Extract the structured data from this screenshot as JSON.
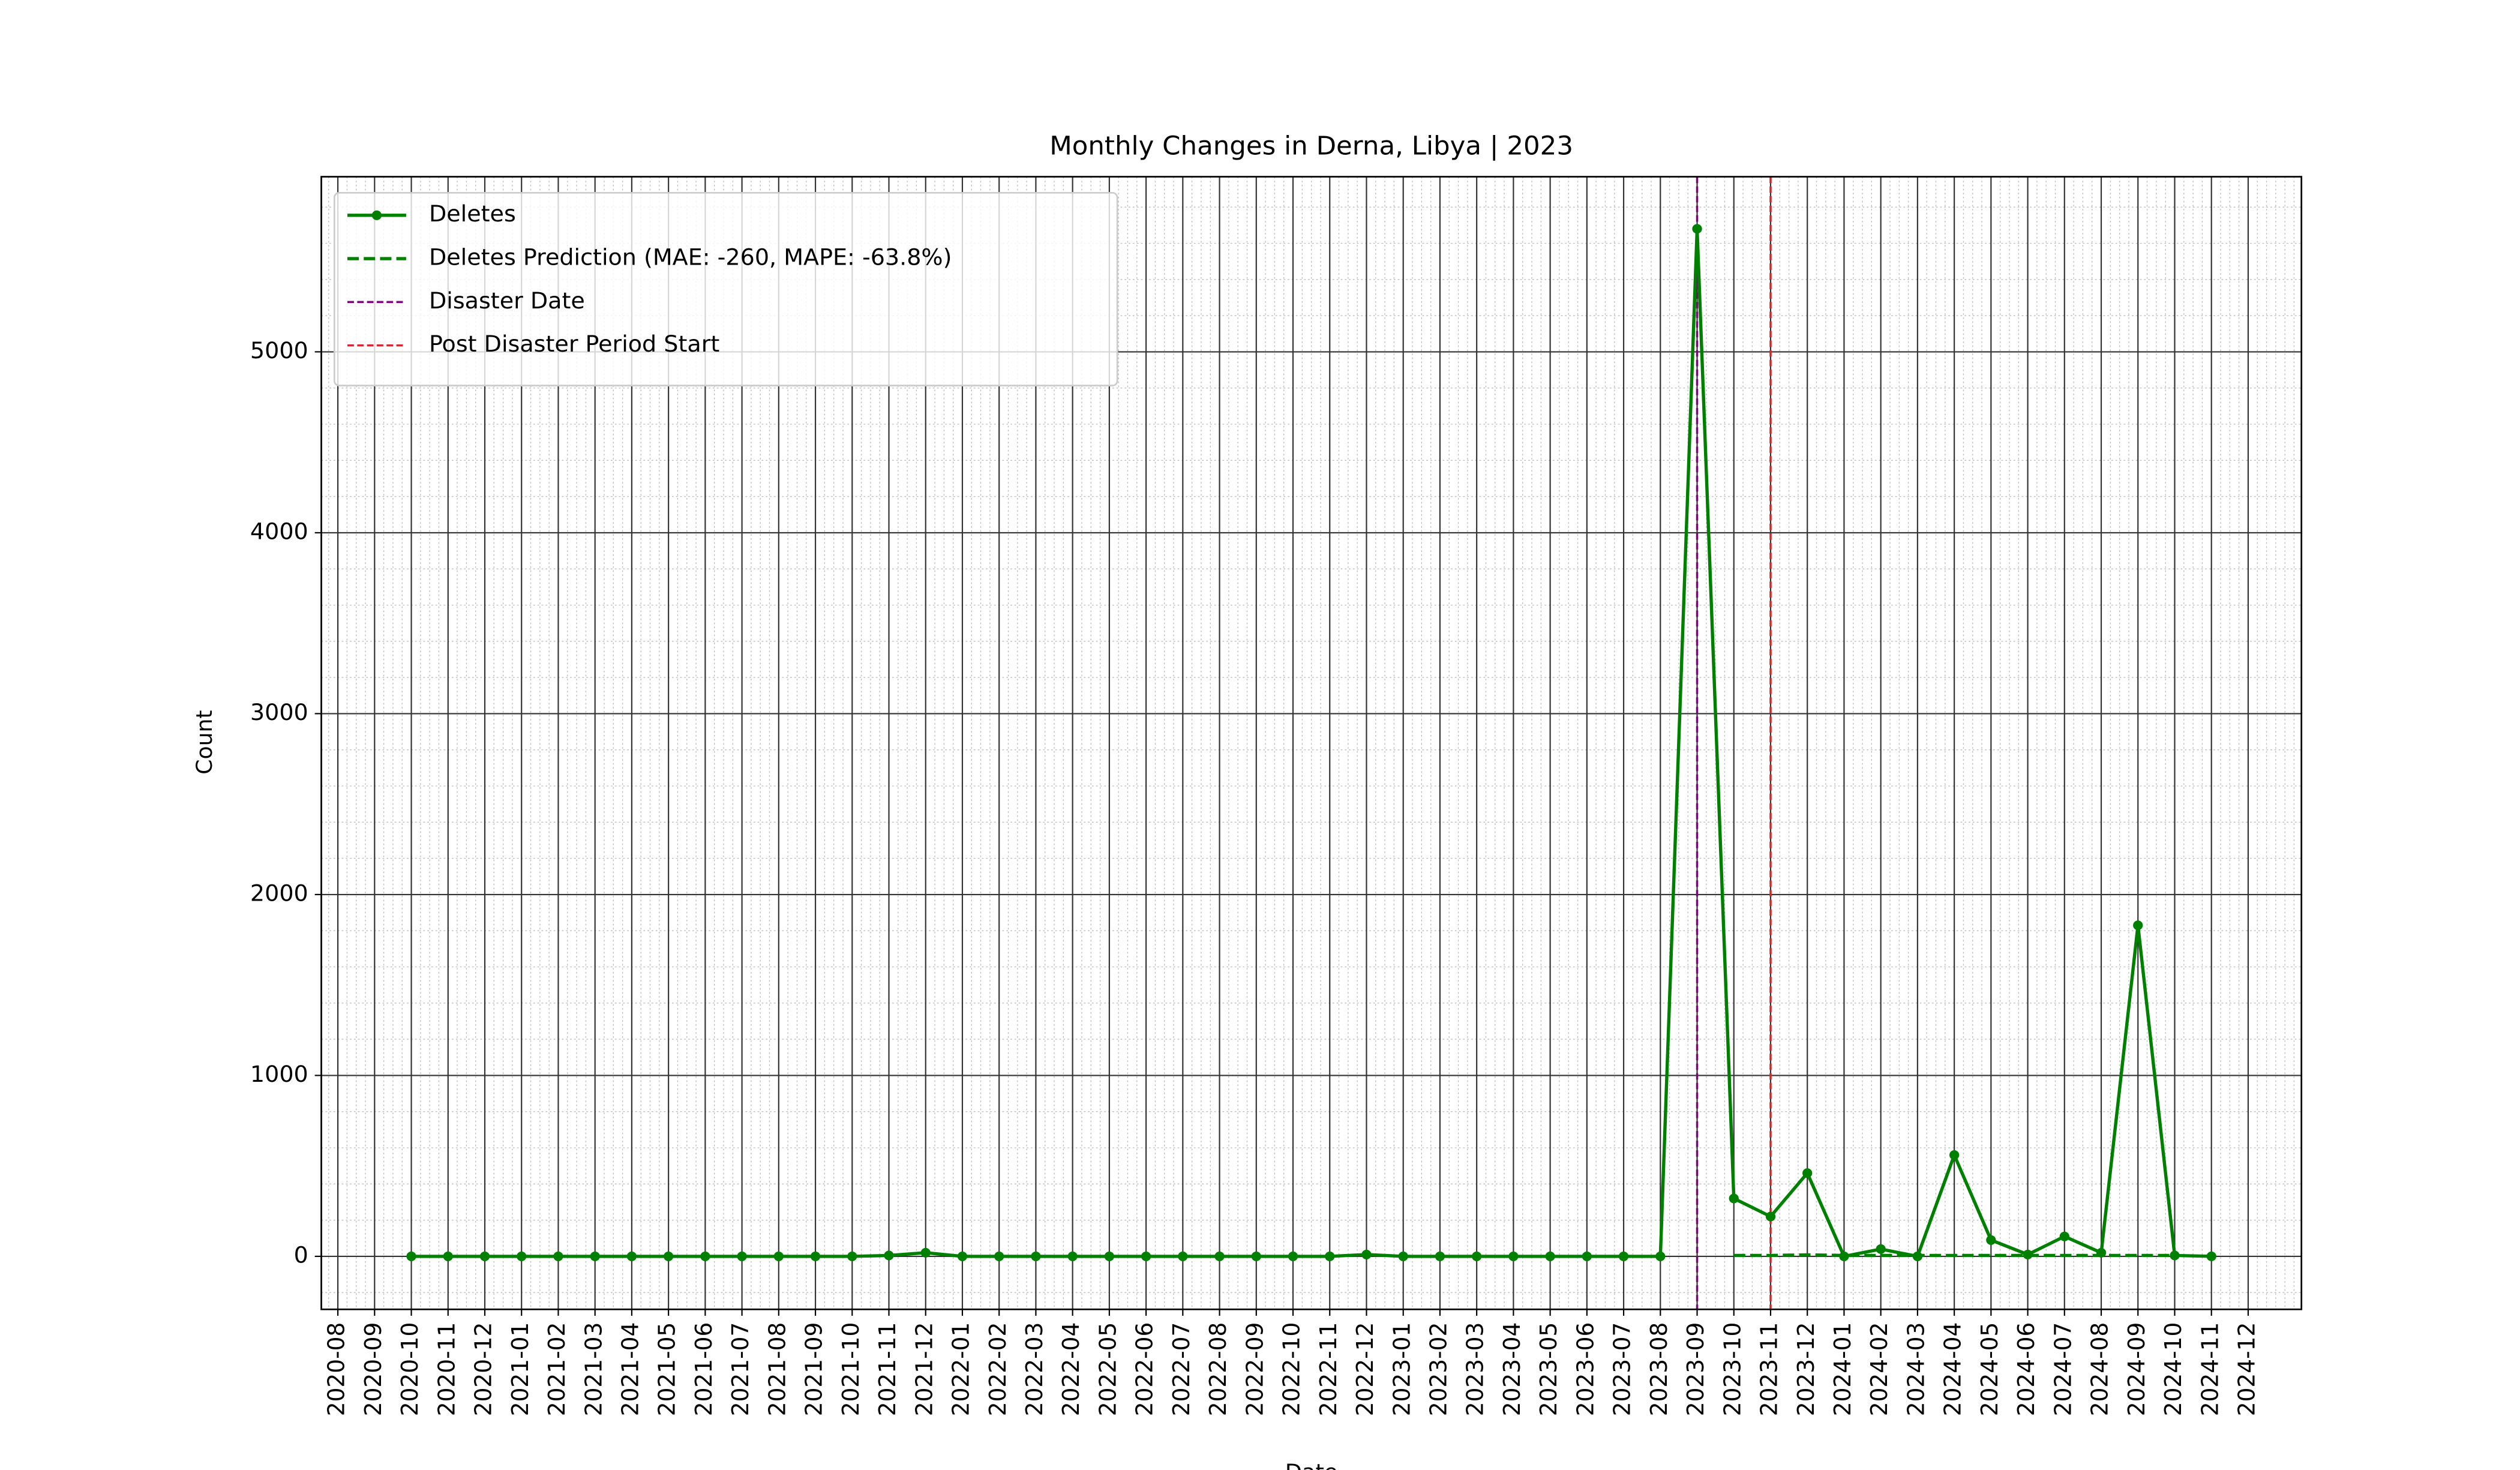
{
  "chart_data": {
    "type": "line",
    "title": "Monthly Changes in Derna, Libya | 2023",
    "x_label": "Date",
    "y_label": "Count",
    "x": [
      "2020-10",
      "2020-11",
      "2020-12",
      "2021-01",
      "2021-02",
      "2021-03",
      "2021-04",
      "2021-05",
      "2021-06",
      "2021-07",
      "2021-08",
      "2021-09",
      "2021-10",
      "2021-11",
      "2021-12",
      "2022-01",
      "2022-02",
      "2022-03",
      "2022-04",
      "2022-05",
      "2022-06",
      "2022-07",
      "2022-08",
      "2022-09",
      "2022-10",
      "2022-11",
      "2022-12",
      "2023-01",
      "2023-02",
      "2023-03",
      "2023-04",
      "2023-05",
      "2023-06",
      "2023-07",
      "2023-08",
      "2023-09",
      "2023-10",
      "2023-11",
      "2023-12",
      "2024-01",
      "2024-02",
      "2024-03",
      "2024-04",
      "2024-05",
      "2024-06",
      "2024-07",
      "2024-08",
      "2024-09",
      "2024-10",
      "2024-11"
    ],
    "series": [
      {
        "name": "Deletes",
        "color": "#008000",
        "style": "solid",
        "markers": true,
        "values": [
          0,
          0,
          0,
          0,
          0,
          0,
          0,
          0,
          0,
          0,
          0,
          0,
          0,
          5,
          20,
          0,
          0,
          0,
          0,
          0,
          0,
          0,
          0,
          0,
          0,
          0,
          10,
          0,
          0,
          0,
          0,
          0,
          0,
          0,
          0,
          5680,
          320,
          220,
          460,
          0,
          40,
          0,
          560,
          90,
          10,
          110,
          20,
          1830,
          5,
          0
        ]
      },
      {
        "name": "Deletes Prediction (MAE: -260, MAPE: -63.8%)",
        "color": "#008000",
        "style": "dashed",
        "markers": false,
        "values": [
          null,
          null,
          null,
          null,
          null,
          null,
          null,
          null,
          null,
          null,
          null,
          null,
          null,
          null,
          null,
          null,
          null,
          null,
          null,
          null,
          null,
          null,
          null,
          null,
          null,
          null,
          null,
          null,
          null,
          null,
          null,
          null,
          null,
          null,
          null,
          null,
          5,
          5,
          8,
          5,
          5,
          5,
          5,
          5,
          5,
          5,
          5,
          5,
          5,
          null
        ]
      }
    ],
    "vlines": [
      {
        "name": "Disaster Date",
        "x": "2023-09",
        "color": "#800080"
      },
      {
        "name": "Post Disaster Period Start",
        "x": "2023-11",
        "color": "#d62728"
      }
    ],
    "xticks": [
      "2020-08",
      "2020-09",
      "2020-10",
      "2020-11",
      "2020-12",
      "2021-01",
      "2021-02",
      "2021-03",
      "2021-04",
      "2021-05",
      "2021-06",
      "2021-07",
      "2021-08",
      "2021-09",
      "2021-10",
      "2021-11",
      "2021-12",
      "2022-01",
      "2022-02",
      "2022-03",
      "2022-04",
      "2022-05",
      "2022-06",
      "2022-07",
      "2022-08",
      "2022-09",
      "2022-10",
      "2022-11",
      "2022-12",
      "2023-01",
      "2023-02",
      "2023-03",
      "2023-04",
      "2023-05",
      "2023-06",
      "2023-07",
      "2023-08",
      "2023-09",
      "2023-10",
      "2023-11",
      "2023-12",
      "2024-01",
      "2024-02",
      "2024-03",
      "2024-04",
      "2024-05",
      "2024-06",
      "2024-07",
      "2024-08",
      "2024-09",
      "2024-10",
      "2024-11",
      "2024-12"
    ],
    "ylim": [
      -293,
      5968
    ],
    "yticks": [
      0,
      1000,
      2000,
      3000,
      4000,
      5000
    ],
    "grid": true,
    "legend": "upper left"
  }
}
